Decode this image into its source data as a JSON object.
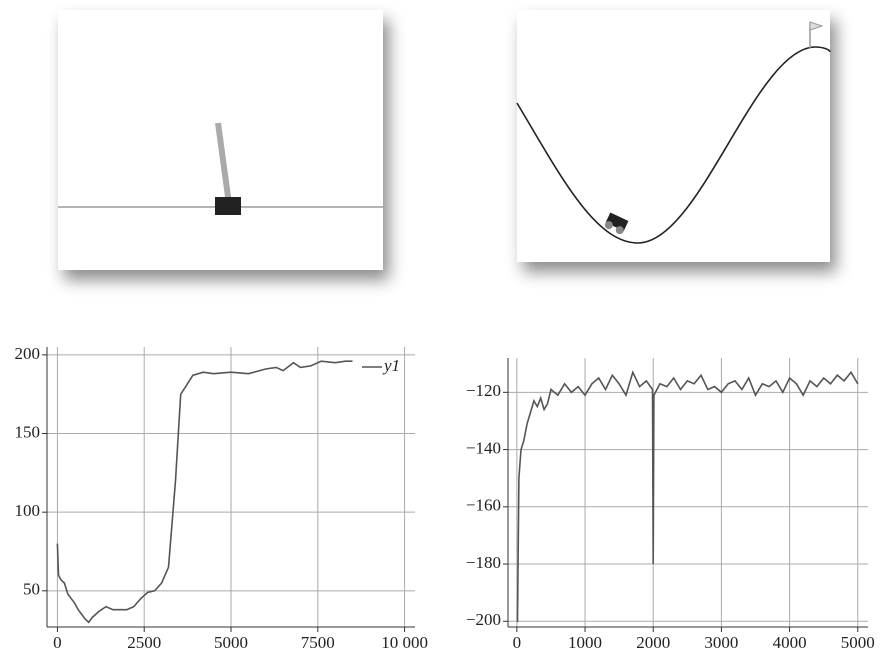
{
  "chart_data": [
    {
      "type": "line",
      "x": [
        0,
        30,
        100,
        200,
        300,
        400,
        500,
        600,
        700,
        800,
        900,
        1000,
        1200,
        1400,
        1600,
        1800,
        2000,
        2200,
        2400,
        2600,
        2800,
        3000,
        3200,
        3400,
        3550,
        3700,
        3900,
        4200,
        4500,
        5000,
        5500,
        6000,
        6300,
        6500,
        6800,
        7000,
        7300,
        7600,
        8000,
        8300,
        8500
      ],
      "series": [
        {
          "name": "y1",
          "color": "#555555",
          "values": [
            80,
            60,
            57,
            55,
            48,
            45,
            42,
            38,
            35,
            32,
            30,
            33,
            37,
            40,
            38,
            38,
            38,
            40,
            45,
            49,
            50,
            55,
            65,
            120,
            175,
            180,
            187,
            189,
            188,
            189,
            188,
            191,
            192,
            190,
            195,
            192,
            193,
            196,
            195,
            196,
            196
          ]
        }
      ],
      "xlim": [
        -300,
        10300
      ],
      "ylim": [
        27,
        205
      ],
      "xticks": [
        0,
        2500,
        5000,
        7500,
        {
          "value": 10000,
          "label": "10 000"
        }
      ],
      "yticks": [
        50,
        100,
        150,
        200
      ],
      "grid": true,
      "legend": "upper right"
    },
    {
      "type": "line",
      "x": [
        0,
        10,
        30,
        60,
        100,
        150,
        200,
        250,
        300,
        350,
        400,
        450,
        500,
        600,
        700,
        800,
        900,
        1000,
        1100,
        1200,
        1300,
        1400,
        1500,
        1600,
        1700,
        1800,
        1900,
        1990,
        2000,
        2010,
        2100,
        2200,
        2300,
        2400,
        2500,
        2600,
        2700,
        2800,
        2900,
        3000,
        3100,
        3200,
        3300,
        3400,
        3500,
        3600,
        3700,
        3800,
        3900,
        4000,
        4100,
        4200,
        4300,
        4400,
        4500,
        4600,
        4700,
        4800,
        4900,
        5000
      ],
      "series": [
        {
          "color": "#555555",
          "values": [
            -200,
            -200,
            -150,
            -140,
            -137,
            -131,
            -127,
            -123,
            -125,
            -122,
            -126,
            -124,
            -119,
            -121,
            -117,
            -120,
            -118,
            -121,
            -117,
            -115,
            -119,
            -114,
            -117,
            -121,
            -113,
            -118,
            -116,
            -119,
            -180,
            -121,
            -117,
            -118,
            -115,
            -119,
            -116,
            -117,
            -114,
            -119,
            -118,
            -120,
            -117,
            -116,
            -119,
            -115,
            -121,
            -117,
            -118,
            -116,
            -120,
            -115,
            -117,
            -121,
            -116,
            -118,
            -115,
            -117,
            -114,
            -116,
            -113,
            -117
          ]
        }
      ],
      "xlim": [
        -130,
        5150
      ],
      "ylim": [
        -202,
        -108
      ],
      "xticks": [
        0,
        1000,
        2000,
        3000,
        4000,
        5000
      ],
      "yticks": [
        {
          "value": -120,
          "label": "−120"
        },
        {
          "value": -140,
          "label": "−140"
        },
        {
          "value": -160,
          "label": "−160"
        },
        {
          "value": -180,
          "label": "−180"
        },
        {
          "value": -200,
          "label": "−200"
        }
      ],
      "grid": true
    }
  ]
}
